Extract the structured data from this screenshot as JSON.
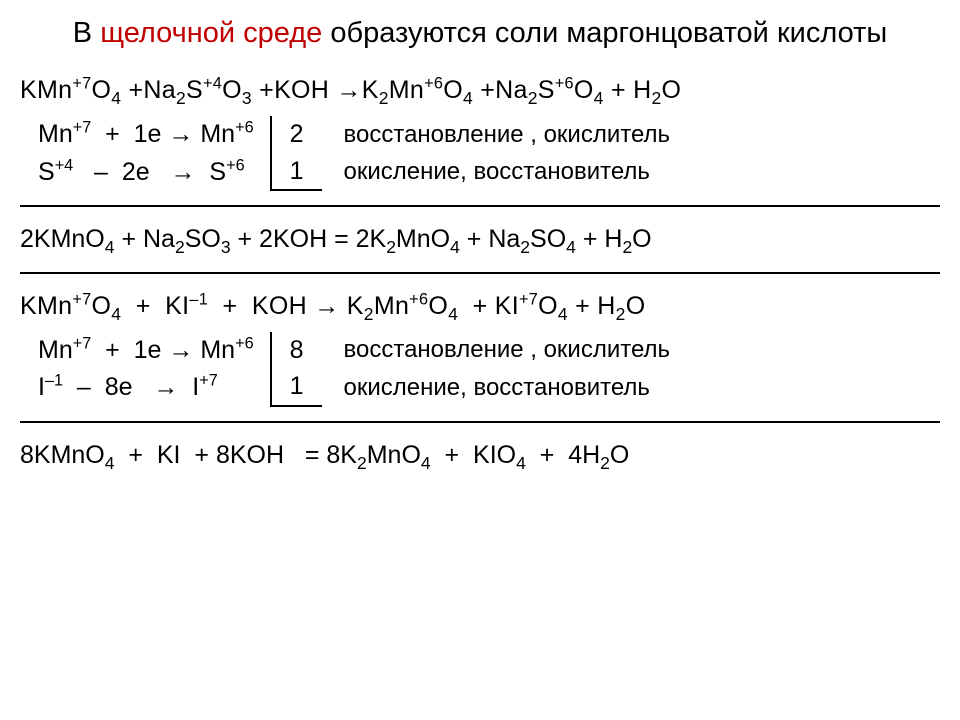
{
  "title_part1": "В ",
  "title_red": "щелочной среде",
  "title_part2": " образуются соли маргонцоватой кислоты",
  "eq1": "KMn<sup>+7</sup>O<sub>4</sub> +Na<sub>2</sub>S<sup>+4</sup>O<sub>3</sub> +KOH →K<sub>2</sub>Mn<sup>+6</sup>O<sub>4</sub> +Na<sub>2</sub>S<sup>+6</sup>O<sub>4</sub> + H<sub>2</sub>O",
  "half1a": "Mn<sup>+7</sup> &nbsp;+ &nbsp;1e → Mn<sup>+6</sup>",
  "half1b": "S<sup>+4</sup> &nbsp;&nbsp;– &nbsp;2e &nbsp;&nbsp;→ &nbsp;S<sup>+6</sup>",
  "coef1a": "2",
  "coef1b": "1",
  "note_red": "восстановление , окислитель",
  "note_ox": "окисление, восстановитель",
  "final1": "2KMnO<sub>4</sub> + Na<sub>2</sub>SO<sub>3</sub> + 2KOH = 2K<sub>2</sub>MnO<sub>4</sub> + Na<sub>2</sub>SO<sub>4</sub> + H<sub>2</sub>O",
  "eq2": "KMn<sup>+7</sup>O<sub>4</sub> &nbsp;+ &nbsp;KI<sup>–1</sup> &nbsp;+ &nbsp;KOH → K<sub>2</sub>Mn<sup>+6</sup>O<sub>4</sub> &nbsp;+ KI<sup>+7</sup>O<sub>4</sub> + H<sub>2</sub>O",
  "half2a": "Mn<sup>+7</sup> &nbsp;+ &nbsp;1e → Mn<sup>+6</sup>",
  "half2b": "I<sup>–1</sup> &nbsp;– &nbsp;8e &nbsp;&nbsp;→ &nbsp;I<sup>+7</sup>",
  "coef2a": "8",
  "coef2b": "1",
  "final2": "8KMnO<sub>4</sub> &nbsp;+ &nbsp;KI &nbsp;+ 8KOH &nbsp;&nbsp;= 8K<sub>2</sub>MnO<sub>4</sub> &nbsp;+ &nbsp;KIO<sub>4</sub> &nbsp;+ &nbsp;4H<sub>2</sub>O",
  "colors": {
    "accent": "#c00000",
    "text": "#000000",
    "bg": "#ffffff"
  }
}
